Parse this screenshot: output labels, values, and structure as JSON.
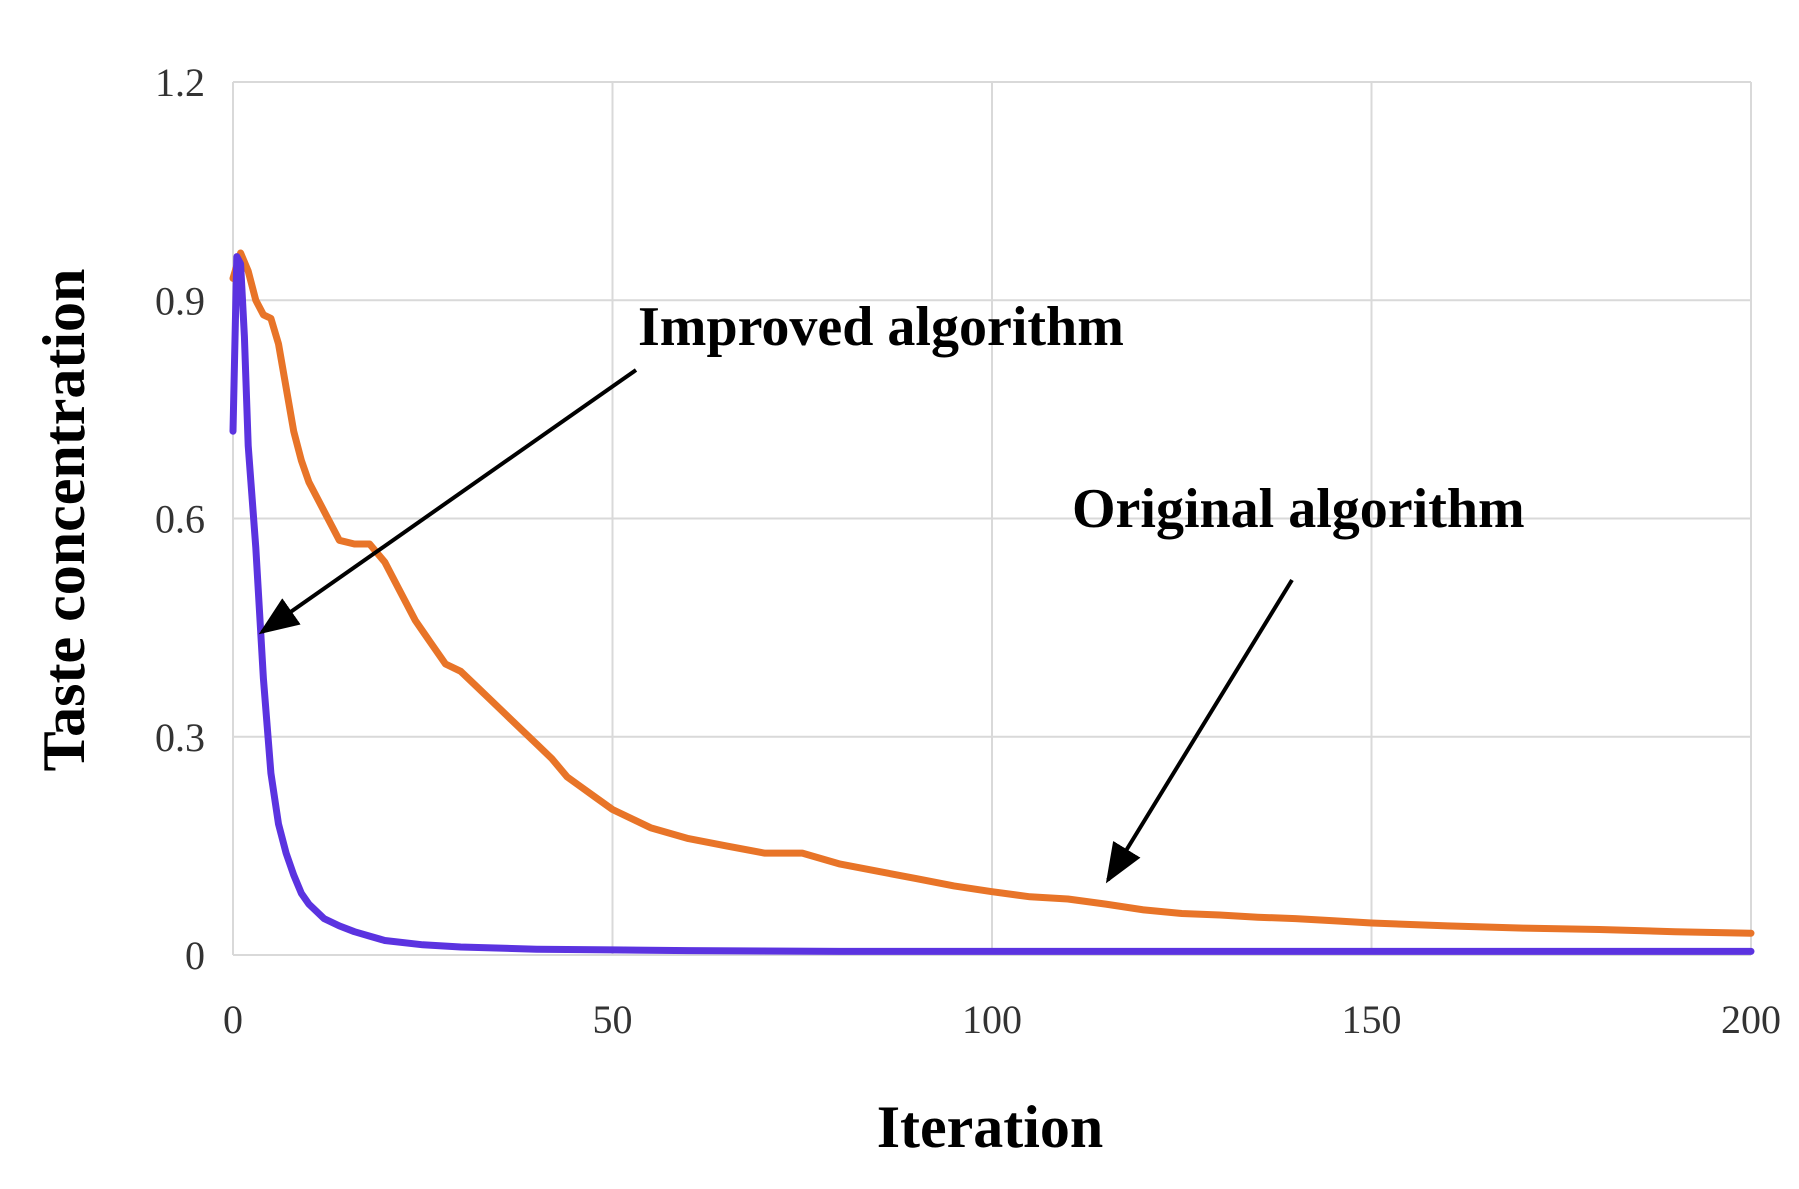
{
  "chart_data": {
    "type": "line",
    "title": "",
    "xlabel": "Iteration",
    "ylabel": "Taste concentration",
    "xlim": [
      0,
      200
    ],
    "ylim": [
      0,
      1.2
    ],
    "x_ticks": [
      0,
      50,
      100,
      150,
      200
    ],
    "x_tick_labels": [
      "0",
      "50",
      "100",
      "150",
      "200"
    ],
    "y_ticks": [
      0,
      0.3,
      0.6,
      0.9,
      1.2
    ],
    "y_tick_labels": [
      "0",
      "0.3",
      "0.6",
      "0.9",
      "1.2"
    ],
    "grid": true,
    "legend": "none",
    "series": [
      {
        "color": "#e87428",
        "x": [
          0,
          1,
          2,
          3,
          4,
          5,
          6,
          7,
          8,
          9,
          10,
          12,
          14,
          16,
          18,
          20,
          22,
          24,
          26,
          28,
          30,
          32,
          34,
          36,
          38,
          40,
          42,
          44,
          46,
          48,
          50,
          55,
          60,
          65,
          70,
          75,
          80,
          85,
          90,
          95,
          100,
          105,
          110,
          115,
          120,
          125,
          130,
          135,
          140,
          145,
          150,
          160,
          170,
          180,
          190,
          200
        ],
        "y": [
          0.93,
          0.965,
          0.94,
          0.9,
          0.88,
          0.875,
          0.84,
          0.78,
          0.72,
          0.68,
          0.65,
          0.61,
          0.57,
          0.565,
          0.565,
          0.54,
          0.5,
          0.46,
          0.43,
          0.4,
          0.39,
          0.37,
          0.35,
          0.33,
          0.31,
          0.29,
          0.27,
          0.245,
          0.23,
          0.215,
          0.2,
          0.175,
          0.16,
          0.15,
          0.14,
          0.14,
          0.125,
          0.115,
          0.105,
          0.095,
          0.087,
          0.08,
          0.077,
          0.07,
          0.062,
          0.057,
          0.055,
          0.052,
          0.05,
          0.047,
          0.044,
          0.04,
          0.037,
          0.035,
          0.032,
          0.03
        ]
      },
      {
        "color": "#5b33e0",
        "x": [
          0,
          0.5,
          1,
          1.5,
          2,
          3,
          4,
          5,
          6,
          7,
          8,
          9,
          10,
          12,
          14,
          16,
          18,
          20,
          25,
          30,
          40,
          50,
          60,
          80,
          100,
          150,
          200
        ],
        "y": [
          0.72,
          0.96,
          0.95,
          0.85,
          0.7,
          0.56,
          0.38,
          0.25,
          0.18,
          0.14,
          0.11,
          0.085,
          0.07,
          0.05,
          0.04,
          0.032,
          0.026,
          0.02,
          0.014,
          0.011,
          0.008,
          0.007,
          0.006,
          0.005,
          0.005,
          0.005,
          0.005
        ]
      }
    ],
    "annotations": [
      {
        "text": "Improved algorithm"
      },
      {
        "text": "Original algorithm"
      }
    ]
  }
}
